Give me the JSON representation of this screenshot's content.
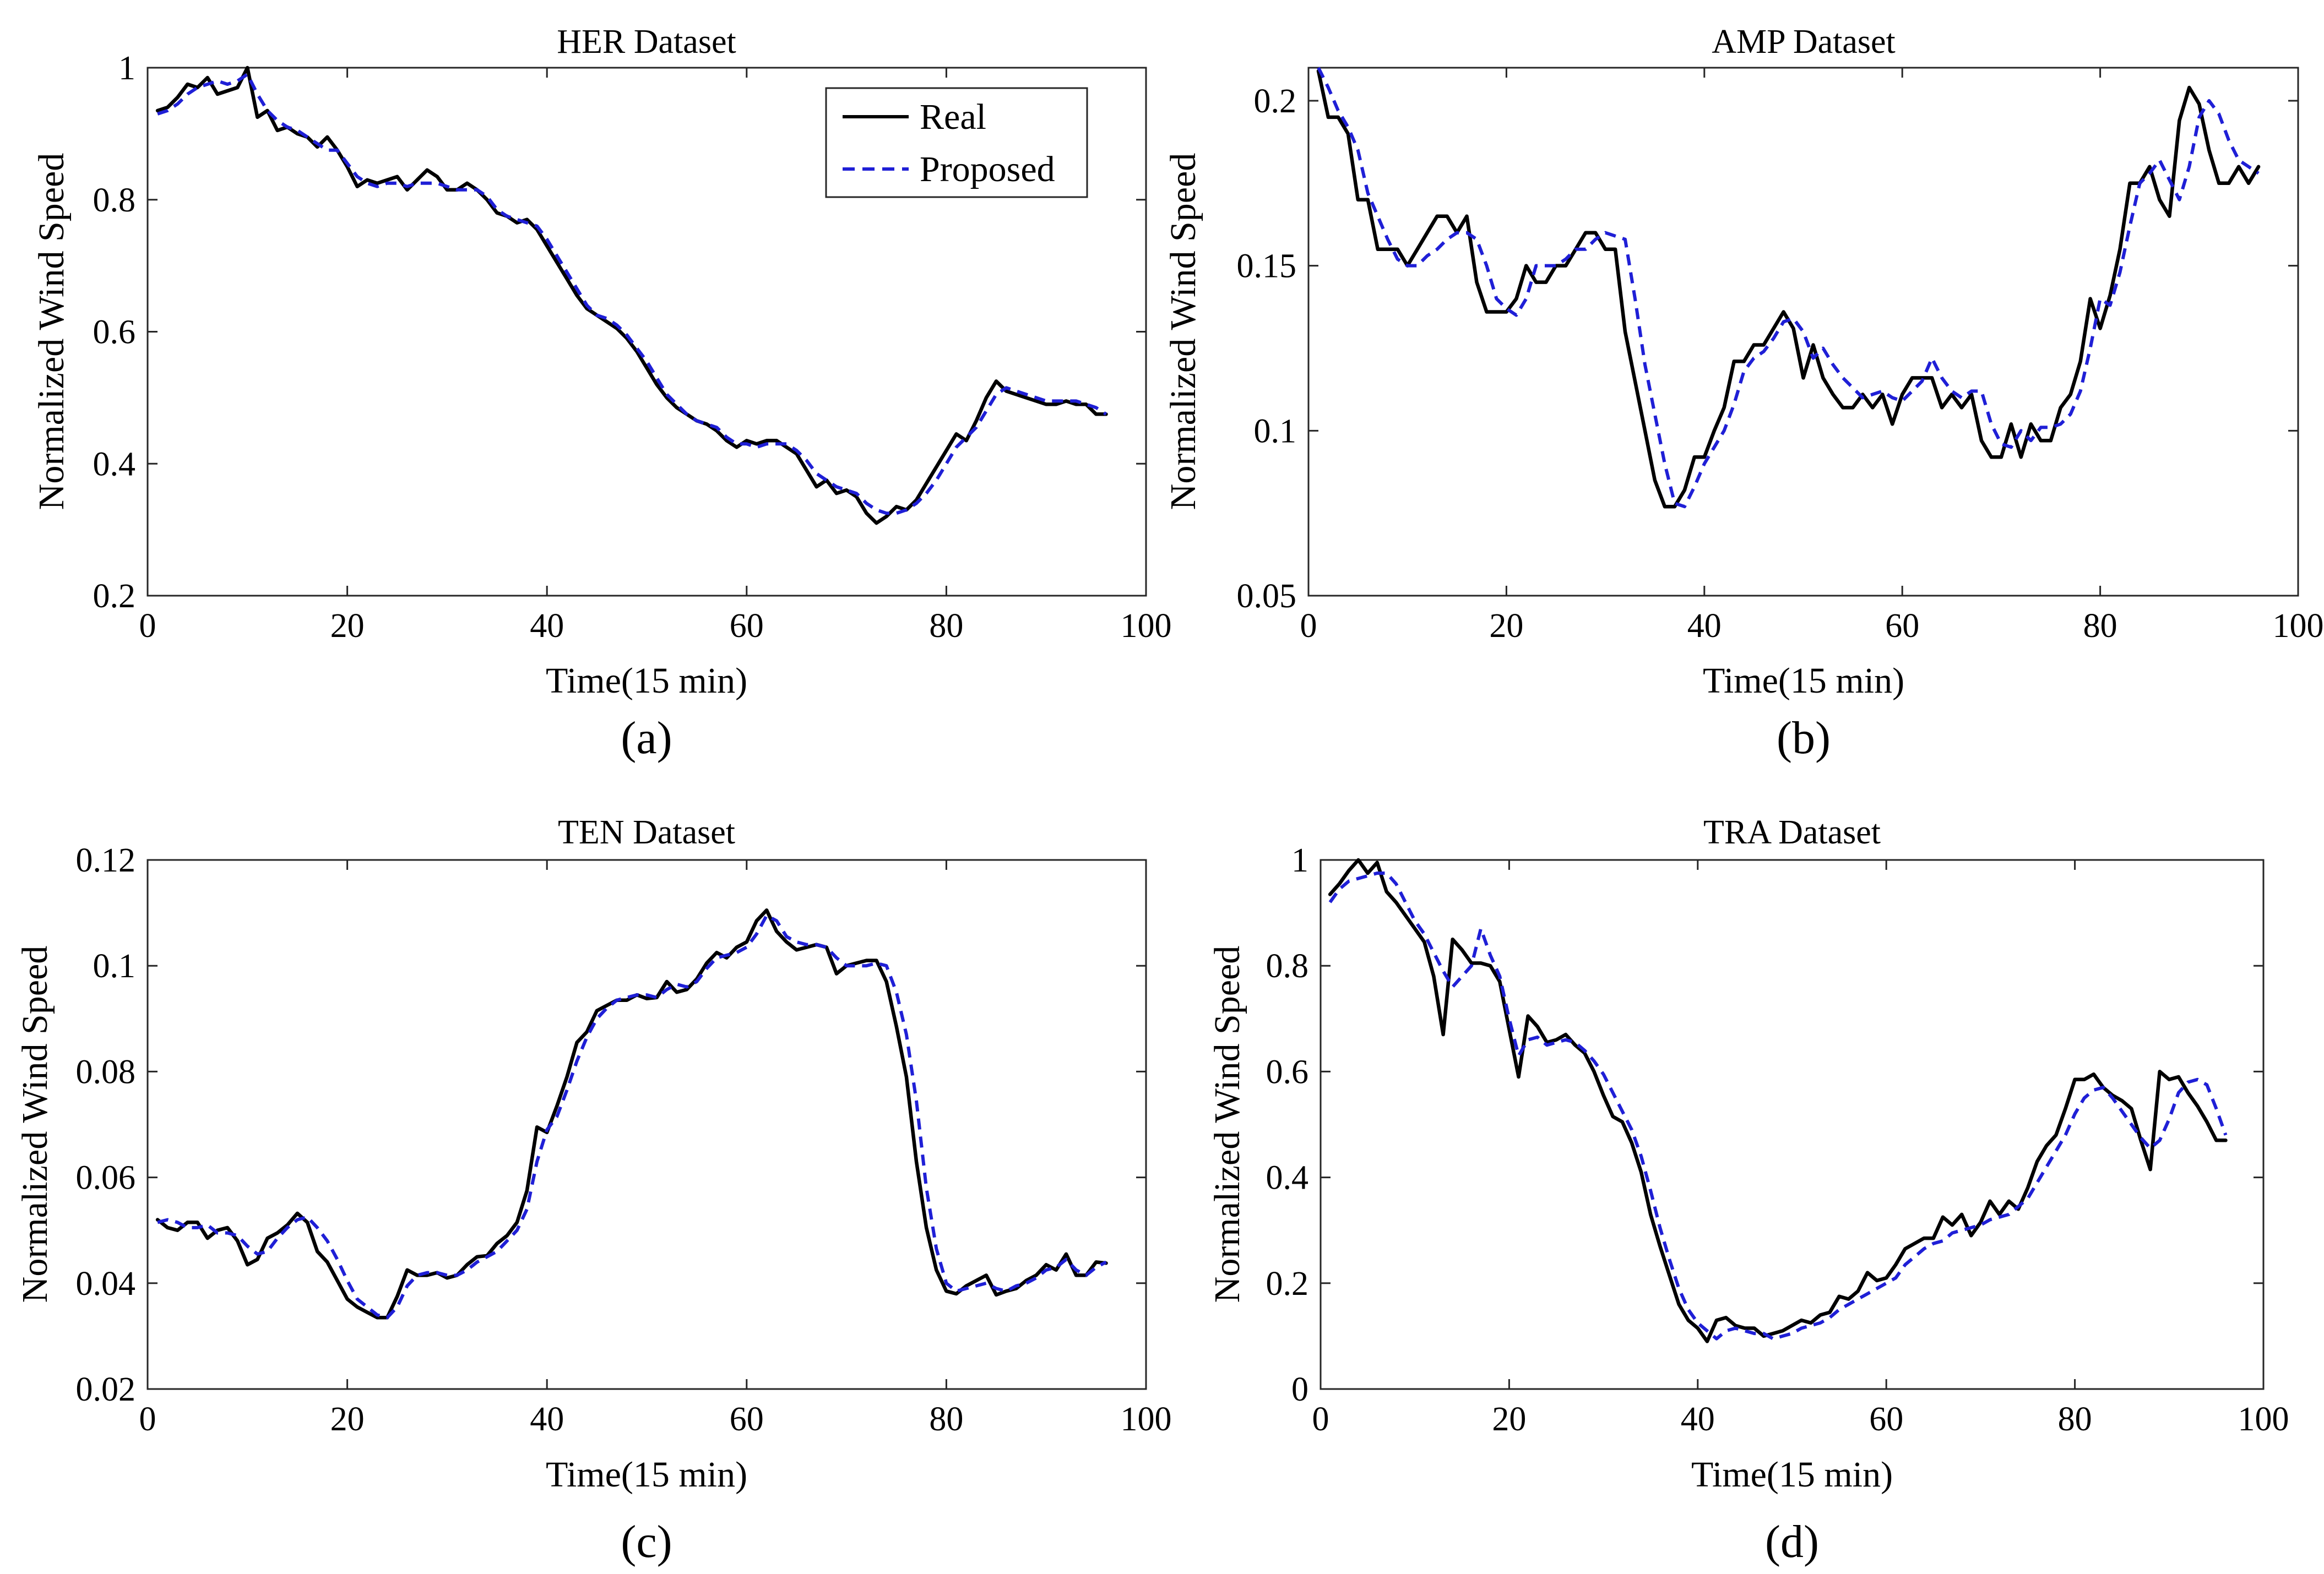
{
  "figure": {
    "panel_labels": [
      "(a)",
      "(b)",
      "(c)",
      "(d)"
    ]
  },
  "colors": {
    "real": "#000000",
    "proposed": "#1f1fd6",
    "axes": "#262626"
  },
  "chart_data": [
    {
      "type": "line",
      "title": "HER Dataset",
      "xlabel": "Time(15 min)",
      "ylabel": "Normalized Wind Speed",
      "xlim": [
        0,
        100
      ],
      "ylim": [
        0.2,
        1
      ],
      "xticks": [
        0,
        20,
        40,
        60,
        80,
        100
      ],
      "yticks": [
        0.2,
        0.4,
        0.6,
        0.8,
        1
      ],
      "ytick_labels": [
        "0.2",
        "0.4",
        "0.6",
        "0.8",
        "1"
      ],
      "legend": {
        "position": "top-right",
        "entries": [
          "Real",
          "Proposed"
        ]
      },
      "x_start": 1,
      "series": [
        {
          "name": "Real",
          "style": "solid",
          "values": [
            0.935,
            0.94,
            0.955,
            0.975,
            0.97,
            0.985,
            0.96,
            0.965,
            0.97,
            1.0,
            0.925,
            0.935,
            0.905,
            0.91,
            0.9,
            0.895,
            0.88,
            0.895,
            0.875,
            0.85,
            0.82,
            0.83,
            0.825,
            0.83,
            0.835,
            0.815,
            0.83,
            0.845,
            0.835,
            0.815,
            0.815,
            0.825,
            0.815,
            0.8,
            0.78,
            0.775,
            0.765,
            0.77,
            0.755,
            0.73,
            0.705,
            0.68,
            0.655,
            0.635,
            0.625,
            0.615,
            0.605,
            0.59,
            0.57,
            0.545,
            0.52,
            0.5,
            0.485,
            0.475,
            0.465,
            0.46,
            0.45,
            0.435,
            0.425,
            0.435,
            0.43,
            0.435,
            0.435,
            0.425,
            0.415,
            0.39,
            0.365,
            0.375,
            0.355,
            0.36,
            0.35,
            0.325,
            0.31,
            0.32,
            0.335,
            0.33,
            0.345,
            0.37,
            0.395,
            0.42,
            0.445,
            0.435,
            0.465,
            0.5,
            0.525,
            0.51,
            0.505,
            0.5,
            0.495,
            0.49,
            0.49,
            0.495,
            0.49,
            0.49,
            0.475,
            0.475
          ]
        },
        {
          "name": "Proposed",
          "style": "dashed",
          "values": [
            0.93,
            0.935,
            0.945,
            0.96,
            0.97,
            0.975,
            0.98,
            0.975,
            0.98,
            0.99,
            0.96,
            0.935,
            0.92,
            0.91,
            0.905,
            0.895,
            0.885,
            0.875,
            0.875,
            0.855,
            0.835,
            0.825,
            0.82,
            0.825,
            0.825,
            0.82,
            0.825,
            0.825,
            0.825,
            0.82,
            0.815,
            0.815,
            0.815,
            0.805,
            0.785,
            0.775,
            0.77,
            0.765,
            0.76,
            0.74,
            0.715,
            0.69,
            0.665,
            0.64,
            0.625,
            0.62,
            0.61,
            0.595,
            0.575,
            0.555,
            0.53,
            0.505,
            0.49,
            0.475,
            0.465,
            0.46,
            0.455,
            0.44,
            0.43,
            0.43,
            0.425,
            0.43,
            0.43,
            0.43,
            0.42,
            0.405,
            0.385,
            0.375,
            0.365,
            0.36,
            0.355,
            0.34,
            0.33,
            0.325,
            0.325,
            0.33,
            0.34,
            0.355,
            0.375,
            0.4,
            0.425,
            0.44,
            0.455,
            0.48,
            0.505,
            0.515,
            0.51,
            0.505,
            0.5,
            0.495,
            0.495,
            0.495,
            0.495,
            0.49,
            0.485,
            0.475
          ]
        }
      ]
    },
    {
      "type": "line",
      "title": "AMP Dataset",
      "xlabel": "Time(15 min)",
      "ylabel": "Normalized Wind Speed",
      "xlim": [
        0,
        100
      ],
      "ylim": [
        0.05,
        0.21
      ],
      "xticks": [
        0,
        20,
        40,
        60,
        80,
        100
      ],
      "yticks": [
        0.05,
        0.1,
        0.15,
        0.2
      ],
      "ytick_labels": [
        "0.05",
        "0.1",
        "0.15",
        "0.2"
      ],
      "x_start": 1,
      "series": [
        {
          "name": "Real",
          "style": "solid",
          "values": [
            0.209,
            0.195,
            0.195,
            0.19,
            0.17,
            0.17,
            0.155,
            0.155,
            0.155,
            0.15,
            0.155,
            0.16,
            0.165,
            0.165,
            0.16,
            0.165,
            0.145,
            0.136,
            0.136,
            0.136,
            0.14,
            0.15,
            0.145,
            0.145,
            0.15,
            0.15,
            0.155,
            0.16,
            0.16,
            0.155,
            0.155,
            0.13,
            0.115,
            0.1,
            0.085,
            0.077,
            0.077,
            0.082,
            0.092,
            0.092,
            0.1,
            0.107,
            0.121,
            0.121,
            0.126,
            0.126,
            0.131,
            0.136,
            0.131,
            0.116,
            0.126,
            0.116,
            0.111,
            0.107,
            0.107,
            0.111,
            0.107,
            0.111,
            0.102,
            0.111,
            0.116,
            0.116,
            0.116,
            0.107,
            0.111,
            0.107,
            0.111,
            0.097,
            0.092,
            0.092,
            0.102,
            0.092,
            0.102,
            0.097,
            0.097,
            0.107,
            0.111,
            0.121,
            0.14,
            0.131,
            0.141,
            0.155,
            0.175,
            0.175,
            0.18,
            0.17,
            0.165,
            0.194,
            0.204,
            0.199,
            0.185,
            0.175,
            0.175,
            0.18,
            0.175,
            0.18
          ]
        },
        {
          "name": "Proposed",
          "style": "dashed",
          "values": [
            0.21,
            0.204,
            0.197,
            0.192,
            0.185,
            0.172,
            0.165,
            0.158,
            0.152,
            0.15,
            0.15,
            0.153,
            0.155,
            0.158,
            0.16,
            0.16,
            0.158,
            0.15,
            0.14,
            0.137,
            0.135,
            0.14,
            0.15,
            0.15,
            0.15,
            0.152,
            0.155,
            0.155,
            0.158,
            0.16,
            0.159,
            0.158,
            0.14,
            0.12,
            0.105,
            0.09,
            0.078,
            0.077,
            0.083,
            0.09,
            0.095,
            0.1,
            0.108,
            0.118,
            0.122,
            0.124,
            0.128,
            0.133,
            0.134,
            0.13,
            0.122,
            0.125,
            0.12,
            0.116,
            0.113,
            0.11,
            0.111,
            0.112,
            0.11,
            0.109,
            0.112,
            0.115,
            0.122,
            0.116,
            0.112,
            0.11,
            0.112,
            0.112,
            0.102,
            0.096,
            0.095,
            0.1,
            0.097,
            0.101,
            0.101,
            0.102,
            0.105,
            0.112,
            0.125,
            0.14,
            0.138,
            0.148,
            0.162,
            0.175,
            0.178,
            0.182,
            0.176,
            0.17,
            0.18,
            0.195,
            0.2,
            0.196,
            0.188,
            0.182,
            0.18,
            0.178
          ]
        }
      ]
    },
    {
      "type": "line",
      "title": "TEN Dataset",
      "xlabel": "Time(15 min)",
      "ylabel": "Normalized Wind Speed",
      "xlim": [
        0,
        100
      ],
      "ylim": [
        0.02,
        0.12
      ],
      "xticks": [
        0,
        20,
        40,
        60,
        80,
        100
      ],
      "yticks": [
        0.02,
        0.04,
        0.06,
        0.08,
        0.1,
        0.12
      ],
      "ytick_labels": [
        "0.02",
        "0.04",
        "0.06",
        "0.08",
        "0.1",
        "0.12"
      ],
      "x_start": 1,
      "series": [
        {
          "name": "Real",
          "style": "solid",
          "values": [
            0.052,
            0.0505,
            0.05,
            0.0515,
            0.0515,
            0.0485,
            0.05,
            0.0505,
            0.048,
            0.0435,
            0.0445,
            0.0485,
            0.0495,
            0.051,
            0.0532,
            0.0515,
            0.046,
            0.044,
            0.0405,
            0.037,
            0.0355,
            0.0345,
            0.0335,
            0.0335,
            0.0375,
            0.0425,
            0.0415,
            0.0415,
            0.042,
            0.041,
            0.0415,
            0.0435,
            0.045,
            0.0452,
            0.0475,
            0.049,
            0.0515,
            0.0575,
            0.0695,
            0.0685,
            0.0735,
            0.079,
            0.0855,
            0.0875,
            0.0915,
            0.0925,
            0.0935,
            0.0935,
            0.0945,
            0.0938,
            0.094,
            0.097,
            0.095,
            0.0955,
            0.0975,
            0.1005,
            0.1025,
            0.1015,
            0.1035,
            0.1045,
            0.1085,
            0.1105,
            0.1065,
            0.1045,
            0.103,
            0.1035,
            0.104,
            0.1035,
            0.0985,
            0.1,
            0.1005,
            0.101,
            0.101,
            0.097,
            0.0885,
            0.079,
            0.063,
            0.0505,
            0.0425,
            0.0385,
            0.038,
            0.0395,
            0.0405,
            0.0415,
            0.0378,
            0.0385,
            0.039,
            0.0405,
            0.0415,
            0.0435,
            0.0425,
            0.0455,
            0.0415,
            0.0415,
            0.044,
            0.0438
          ]
        },
        {
          "name": "Proposed",
          "style": "dashed",
          "values": [
            0.0515,
            0.052,
            0.0515,
            0.0505,
            0.0505,
            0.051,
            0.0495,
            0.0495,
            0.049,
            0.047,
            0.0455,
            0.046,
            0.0485,
            0.0505,
            0.052,
            0.0525,
            0.0505,
            0.048,
            0.0445,
            0.0405,
            0.037,
            0.0355,
            0.034,
            0.0335,
            0.0355,
            0.0395,
            0.0415,
            0.042,
            0.042,
            0.0415,
            0.0415,
            0.0425,
            0.044,
            0.045,
            0.046,
            0.048,
            0.05,
            0.054,
            0.063,
            0.069,
            0.0715,
            0.0765,
            0.082,
            0.0865,
            0.09,
            0.092,
            0.0935,
            0.094,
            0.0945,
            0.0945,
            0.094,
            0.0955,
            0.0965,
            0.096,
            0.097,
            0.0995,
            0.1015,
            0.102,
            0.1025,
            0.1035,
            0.106,
            0.1095,
            0.1085,
            0.1055,
            0.1045,
            0.104,
            0.104,
            0.1035,
            0.1015,
            0.1,
            0.1,
            0.1,
            0.1005,
            0.1,
            0.095,
            0.087,
            0.0745,
            0.058,
            0.0465,
            0.04,
            0.0385,
            0.039,
            0.0395,
            0.04,
            0.039,
            0.0385,
            0.0395,
            0.04,
            0.041,
            0.0425,
            0.043,
            0.0445,
            0.0425,
            0.0415,
            0.043,
            0.044
          ]
        }
      ]
    },
    {
      "type": "line",
      "title": "TRA Dataset",
      "xlabel": "Time(15 min)",
      "ylabel": "Normalized Wind Speed",
      "xlim": [
        0,
        100
      ],
      "ylim": [
        0,
        1
      ],
      "xticks": [
        0,
        20,
        40,
        60,
        80,
        100
      ],
      "yticks": [
        0,
        0.2,
        0.4,
        0.6,
        0.8,
        1
      ],
      "ytick_labels": [
        "0",
        "0.2",
        "0.4",
        "0.6",
        "0.8",
        "1"
      ],
      "x_start": 1,
      "series": [
        {
          "name": "Real",
          "style": "solid",
          "values": [
            0.935,
            0.955,
            0.98,
            1.0,
            0.975,
            0.995,
            0.94,
            0.92,
            0.895,
            0.87,
            0.845,
            0.78,
            0.67,
            0.85,
            0.83,
            0.805,
            0.805,
            0.8,
            0.77,
            0.68,
            0.59,
            0.705,
            0.685,
            0.655,
            0.66,
            0.67,
            0.65,
            0.635,
            0.6,
            0.555,
            0.515,
            0.505,
            0.465,
            0.41,
            0.33,
            0.27,
            0.215,
            0.16,
            0.13,
            0.115,
            0.09,
            0.13,
            0.135,
            0.12,
            0.115,
            0.115,
            0.1,
            0.105,
            0.11,
            0.12,
            0.13,
            0.125,
            0.14,
            0.145,
            0.175,
            0.17,
            0.185,
            0.22,
            0.205,
            0.21,
            0.235,
            0.265,
            0.275,
            0.285,
            0.285,
            0.325,
            0.31,
            0.33,
            0.29,
            0.315,
            0.355,
            0.33,
            0.355,
            0.34,
            0.38,
            0.43,
            0.46,
            0.48,
            0.53,
            0.585,
            0.585,
            0.595,
            0.57,
            0.555,
            0.545,
            0.53,
            0.47,
            0.415,
            0.6,
            0.585,
            0.59,
            0.56,
            0.535,
            0.505,
            0.47,
            0.47
          ]
        },
        {
          "name": "Proposed",
          "style": "dashed",
          "values": [
            0.92,
            0.945,
            0.96,
            0.965,
            0.97,
            0.975,
            0.975,
            0.955,
            0.92,
            0.885,
            0.86,
            0.825,
            0.79,
            0.76,
            0.78,
            0.8,
            0.87,
            0.82,
            0.78,
            0.7,
            0.63,
            0.66,
            0.665,
            0.65,
            0.655,
            0.66,
            0.655,
            0.64,
            0.62,
            0.595,
            0.56,
            0.525,
            0.49,
            0.44,
            0.375,
            0.305,
            0.245,
            0.19,
            0.15,
            0.125,
            0.11,
            0.095,
            0.11,
            0.115,
            0.11,
            0.105,
            0.105,
            0.095,
            0.1,
            0.105,
            0.115,
            0.12,
            0.125,
            0.135,
            0.15,
            0.16,
            0.17,
            0.18,
            0.19,
            0.2,
            0.21,
            0.235,
            0.25,
            0.265,
            0.275,
            0.28,
            0.295,
            0.3,
            0.305,
            0.31,
            0.32,
            0.325,
            0.33,
            0.345,
            0.36,
            0.39,
            0.42,
            0.45,
            0.48,
            0.52,
            0.55,
            0.565,
            0.57,
            0.55,
            0.525,
            0.5,
            0.475,
            0.455,
            0.47,
            0.51,
            0.56,
            0.58,
            0.585,
            0.575,
            0.53,
            0.48
          ]
        }
      ]
    }
  ]
}
